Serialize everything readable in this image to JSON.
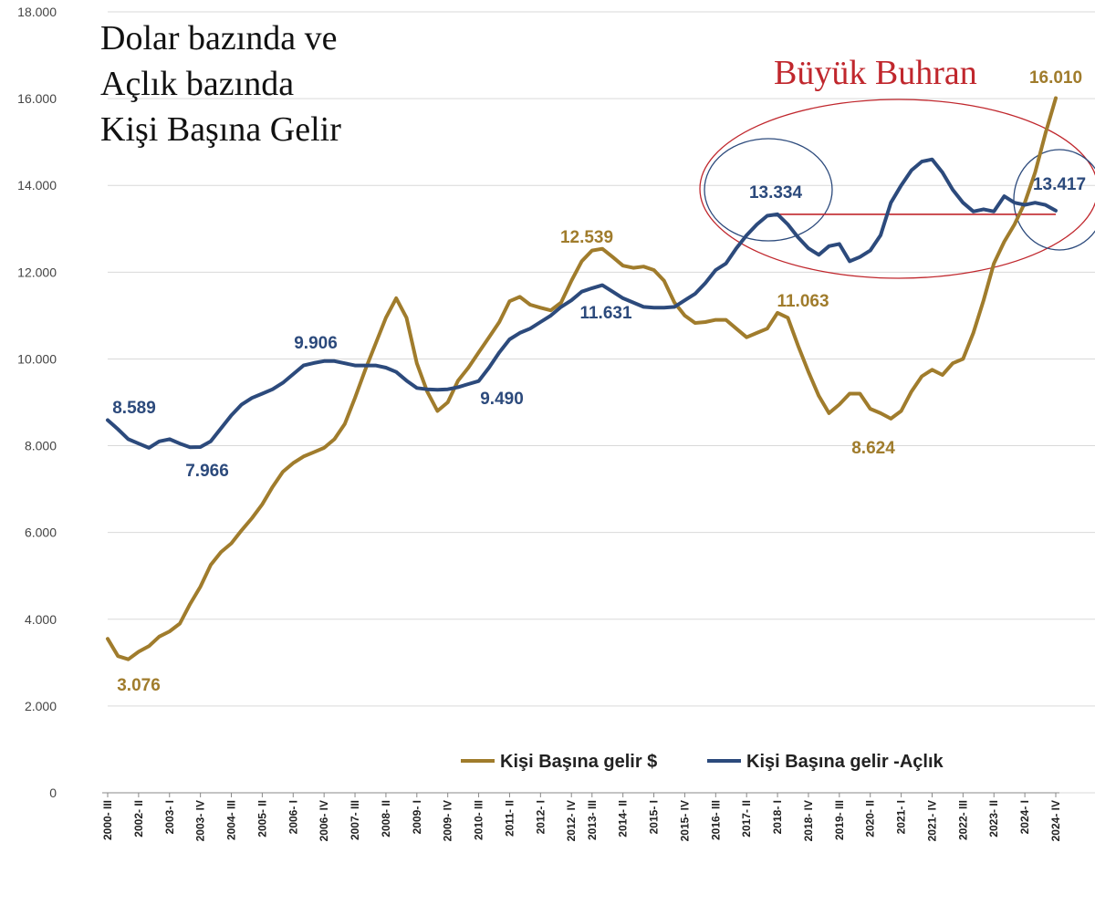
{
  "chart_data": {
    "type": "line",
    "title": [
      "Dolar bazında ve",
      "Açlık bazında",
      "Kişi Başına Gelir"
    ],
    "annotation": "Büyük Buhran",
    "ylim": [
      0,
      18000
    ],
    "yticks": [
      0,
      2000,
      4000,
      6000,
      8000,
      10000,
      12000,
      14000,
      16000,
      18000
    ],
    "ytick_labels": [
      "0",
      "2.000",
      "4.000",
      "6.000",
      "8.000",
      "10.000",
      "12.000",
      "14.000",
      "16.000",
      "18.000"
    ],
    "xtick_labels": [
      "2000- III",
      "2002- II",
      "2003- I",
      "2003- IV",
      "2004- III",
      "2005- II",
      "2006- I",
      "2006- IV",
      "2007- III",
      "2008- II",
      "2009- I",
      "2009- IV",
      "2010- III",
      "2011- II",
      "2012- I",
      "2012- IV",
      "2013- III",
      "2014- II",
      "2015- I",
      "2015- IV",
      "2016- III",
      "2017- II",
      "2018- I",
      "2018- IV",
      "2019- III",
      "2020- II",
      "2021- I",
      "2021- IV",
      "2022- III",
      "2023- II",
      "2024- I",
      "2024- IV"
    ],
    "grid": true,
    "legend_position": "bottom-right",
    "series": [
      {
        "name": "Kişi Başına gelir $",
        "color": "#a07c2c",
        "values": [
          3550,
          3150,
          3076,
          3250,
          3380,
          3600,
          3720,
          3900,
          4350,
          4750,
          5250,
          5550,
          5750,
          6050,
          6330,
          6650,
          7050,
          7400,
          7600,
          7750,
          7850,
          7950,
          8150,
          8500,
          9100,
          9750,
          10350,
          10950,
          11400,
          10950,
          9900,
          9250,
          8800,
          9000,
          9500,
          9800,
          10150,
          10500,
          10850,
          11330,
          11430,
          11250,
          11180,
          11120,
          11300,
          11800,
          12250,
          12500,
          12539,
          12350,
          12150,
          12100,
          12130,
          12050,
          11800,
          11300,
          11000,
          10830,
          10850,
          10900,
          10900,
          10700,
          10500,
          10600,
          10700,
          11063,
          10950,
          10300,
          9700,
          9150,
          8750,
          8950,
          9200,
          9200,
          8850,
          8750,
          8624,
          8800,
          9250,
          9600,
          9750,
          9630,
          9900,
          10000,
          10600,
          11350,
          12200,
          12700,
          13100,
          13600,
          14300,
          15200,
          16010
        ]
      },
      {
        "name": "Kişi Başına gelir -Açlık",
        "color": "#2c4a7c",
        "values": [
          8589,
          8380,
          8150,
          8050,
          7950,
          8100,
          8150,
          8050,
          7966,
          7970,
          8100,
          8400,
          8700,
          8950,
          9100,
          9200,
          9300,
          9450,
          9650,
          9850,
          9906,
          9950,
          9950,
          9900,
          9850,
          9850,
          9850,
          9800,
          9700,
          9500,
          9330,
          9300,
          9290,
          9300,
          9350,
          9420,
          9490,
          9800,
          10150,
          10450,
          10600,
          10700,
          10850,
          11000,
          11200,
          11350,
          11550,
          11631,
          11700,
          11550,
          11400,
          11300,
          11200,
          11180,
          11180,
          11200,
          11350,
          11500,
          11750,
          12050,
          12200,
          12550,
          12850,
          13100,
          13300,
          13334,
          13100,
          12800,
          12550,
          12400,
          12600,
          12650,
          12250,
          12350,
          12500,
          12850,
          13600,
          14000,
          14350,
          14550,
          14600,
          14300,
          13900,
          13600,
          13400,
          13450,
          13400,
          13750,
          13600,
          13550,
          13600,
          13550,
          13417
        ]
      }
    ],
    "data_labels": [
      {
        "series": 0,
        "text": "3.076"
      },
      {
        "series": 0,
        "text": "12.539"
      },
      {
        "series": 0,
        "text": "11.063"
      },
      {
        "series": 0,
        "text": "8.624"
      },
      {
        "series": 0,
        "text": "16.010"
      },
      {
        "series": 1,
        "text": "8.589"
      },
      {
        "series": 1,
        "text": "7.966"
      },
      {
        "series": 1,
        "text": "9.906"
      },
      {
        "series": 1,
        "text": "9.490"
      },
      {
        "series": 1,
        "text": "11.631"
      },
      {
        "series": 1,
        "text": "13.334"
      },
      {
        "series": 1,
        "text": "13.417"
      }
    ],
    "annotation_color": "#c0272d",
    "circle_color": "#2c4a7c"
  }
}
